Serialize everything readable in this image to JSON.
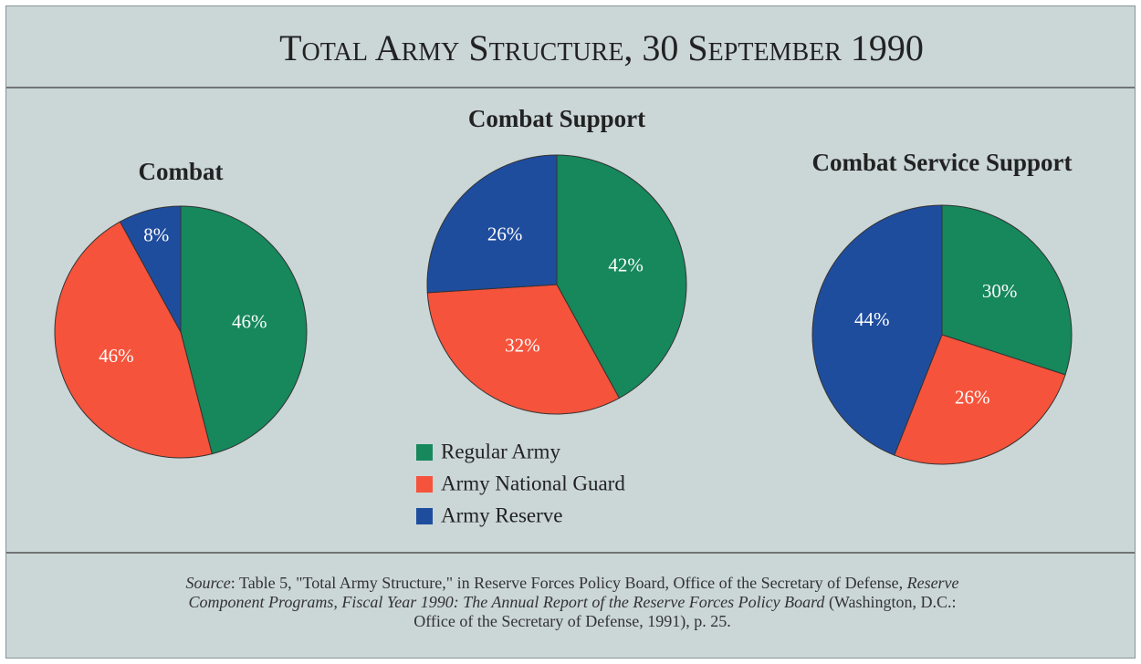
{
  "title": "Total Army Structure, 30 September 1990",
  "legend": [
    {
      "name": "Regular Army",
      "color": "#16885c"
    },
    {
      "name": "Army National Guard",
      "color": "#f5533b"
    },
    {
      "name": "Army Reserve",
      "color": "#1f4d9e"
    }
  ],
  "chart_data": [
    {
      "type": "pie",
      "title": "Combat",
      "values": [
        46,
        46,
        8
      ],
      "value_labels": [
        "46%",
        "46%",
        "8%"
      ]
    },
    {
      "type": "pie",
      "title": "Combat Support",
      "values": [
        42,
        32,
        26
      ],
      "value_labels": [
        "42%",
        "32%",
        "26%"
      ]
    },
    {
      "type": "pie",
      "title": "Combat Service Support",
      "values": [
        30,
        26,
        44
      ],
      "value_labels": [
        "30%",
        "26%",
        "44%"
      ]
    }
  ],
  "source": [
    {
      "text": "Source",
      "style": "italic"
    },
    {
      "text": ": Table 5, \"Total Army Structure,\" in Reserve Forces Policy Board, Office of the Secretary of Defense, ",
      "style": "normal"
    },
    {
      "text": "Reserve Component Programs, Fiscal Year 1990: The Annual Report of the Reserve Forces Policy Board",
      "style": "italic"
    },
    {
      "text": " (Washington, D.C.: Office of the Secretary of Defense, 1991), p. 25.",
      "style": "normal"
    }
  ]
}
